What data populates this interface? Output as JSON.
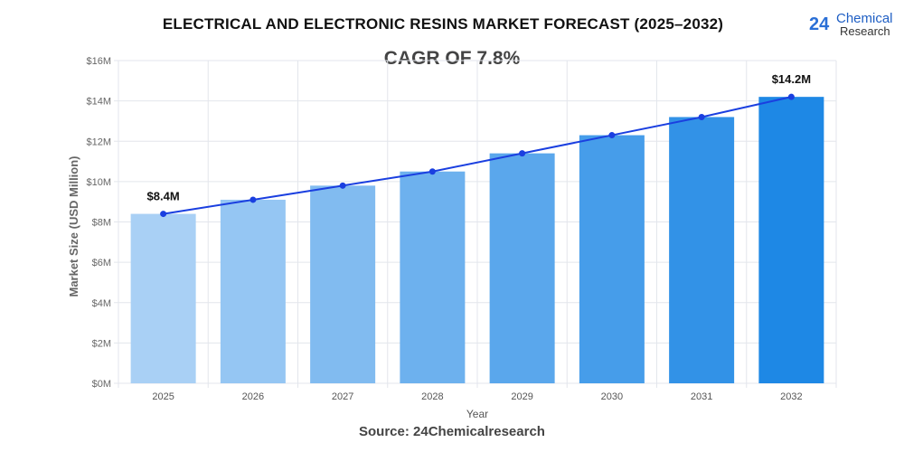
{
  "title": "ELECTRICAL AND ELECTRONIC RESINS MARKET FORECAST (2025–2032)",
  "subtitle": "CAGR OF 7.8%",
  "source": "Source: 24Chemicalresearch",
  "logo": {
    "number": "24",
    "line1": "Chemical",
    "line2": "Research"
  },
  "chart_data": {
    "type": "bar",
    "title": "ELECTRICAL AND ELECTRONIC RESINS MARKET FORECAST (2025–2032)",
    "xlabel": "Year",
    "ylabel": "Market Size (USD Million)",
    "categories": [
      "2025",
      "2026",
      "2027",
      "2028",
      "2029",
      "2030",
      "2031",
      "2032"
    ],
    "values": [
      8.4,
      9.1,
      9.8,
      10.5,
      11.4,
      12.3,
      13.2,
      14.2
    ],
    "overlay_line": true,
    "ylim": [
      0,
      16
    ],
    "yticks": [
      "$0M",
      "$2M",
      "$4M",
      "$6M",
      "$8M",
      "$10M",
      "$12M",
      "$14M",
      "$16M"
    ],
    "data_labels": [
      {
        "category": "2025",
        "text": "$8.4M"
      },
      {
        "category": "2032",
        "text": "$14.2M"
      }
    ],
    "grid": true,
    "colors": {
      "bar_start": "#a9d0f5",
      "bar_end": "#1e88e5",
      "line": "#1a3fe0"
    }
  }
}
